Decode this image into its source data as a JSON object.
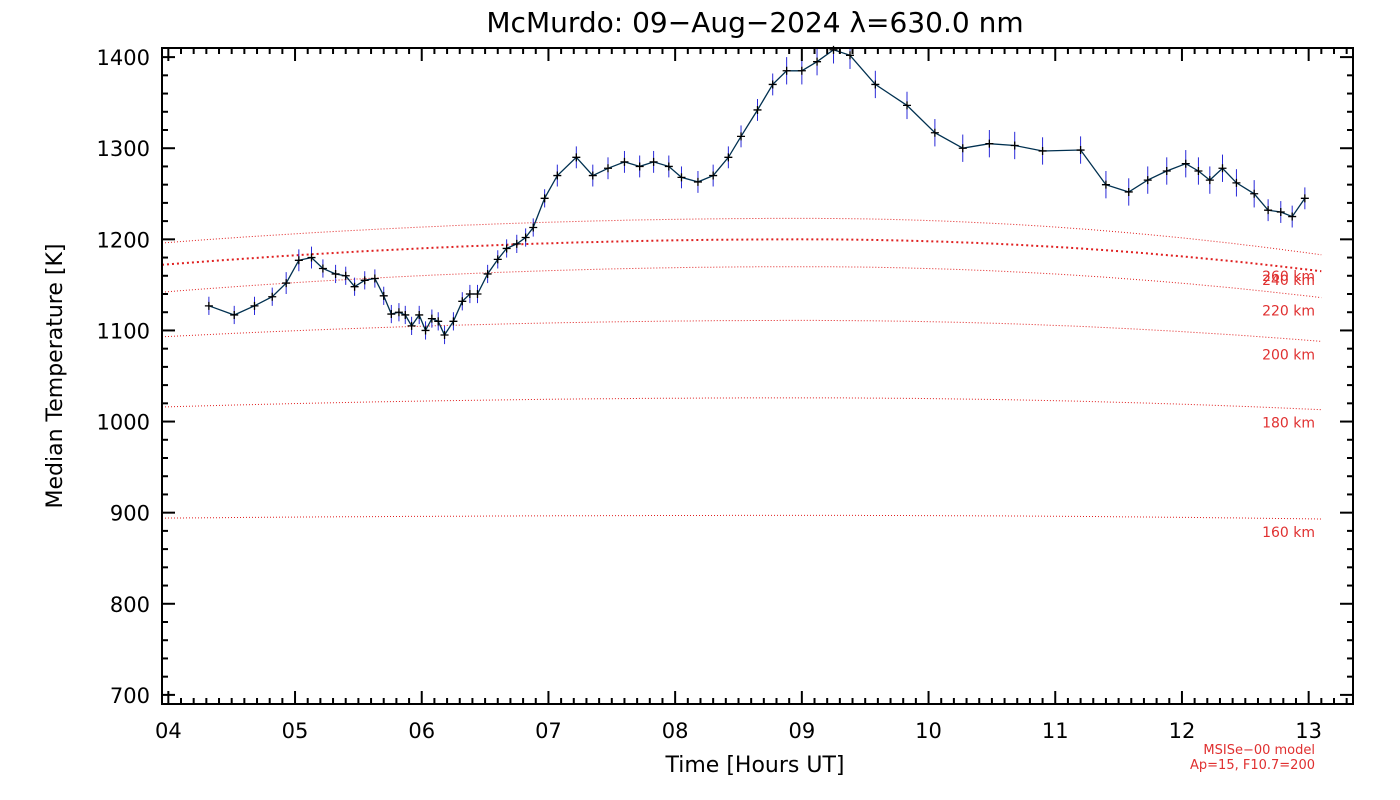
{
  "chart_data": {
    "type": "line",
    "title": "McMurdo: 09−Aug−2024 λ=630.0 nm",
    "xlabel": "Time [Hours UT]",
    "ylabel": "Median Temperature [K]",
    "xlim": [
      3.95,
      13.35
    ],
    "ylim": [
      690,
      1410
    ],
    "x_ticks": [
      {
        "value": 4,
        "label": "04"
      },
      {
        "value": 5,
        "label": "05"
      },
      {
        "value": 6,
        "label": "06"
      },
      {
        "value": 7,
        "label": "07"
      },
      {
        "value": 8,
        "label": "08"
      },
      {
        "value": 9,
        "label": "09"
      },
      {
        "value": 10,
        "label": "10"
      },
      {
        "value": 11,
        "label": "11"
      },
      {
        "value": 12,
        "label": "12"
      },
      {
        "value": 13,
        "label": "13"
      }
    ],
    "y_ticks": [
      {
        "value": 700,
        "label": "700"
      },
      {
        "value": 800,
        "label": "800"
      },
      {
        "value": 900,
        "label": "900"
      },
      {
        "value": 1000,
        "label": "1000"
      },
      {
        "value": 1100,
        "label": "1100"
      },
      {
        "value": 1200,
        "label": "1200"
      },
      {
        "value": 1300,
        "label": "1300"
      },
      {
        "value": 1400,
        "label": "1400"
      }
    ],
    "series": [
      {
        "color": "#003050",
        "errorbar_color": "#2828d8",
        "marker": "plus",
        "points": [
          {
            "x": 4.32,
            "y": 1127,
            "err": 10
          },
          {
            "x": 4.52,
            "y": 1117,
            "err": 10
          },
          {
            "x": 4.68,
            "y": 1127,
            "err": 10
          },
          {
            "x": 4.82,
            "y": 1137,
            "err": 10
          },
          {
            "x": 4.93,
            "y": 1152,
            "err": 12
          },
          {
            "x": 5.03,
            "y": 1177,
            "err": 12
          },
          {
            "x": 5.13,
            "y": 1180,
            "err": 12
          },
          {
            "x": 5.22,
            "y": 1168,
            "err": 10
          },
          {
            "x": 5.32,
            "y": 1162,
            "err": 10
          },
          {
            "x": 5.4,
            "y": 1160,
            "err": 10
          },
          {
            "x": 5.47,
            "y": 1148,
            "err": 10
          },
          {
            "x": 5.55,
            "y": 1155,
            "err": 10
          },
          {
            "x": 5.63,
            "y": 1157,
            "err": 10
          },
          {
            "x": 5.7,
            "y": 1138,
            "err": 10
          },
          {
            "x": 5.76,
            "y": 1118,
            "err": 10
          },
          {
            "x": 5.82,
            "y": 1120,
            "err": 10
          },
          {
            "x": 5.87,
            "y": 1117,
            "err": 10
          },
          {
            "x": 5.92,
            "y": 1105,
            "err": 10
          },
          {
            "x": 5.98,
            "y": 1117,
            "err": 10
          },
          {
            "x": 6.03,
            "y": 1100,
            "err": 10
          },
          {
            "x": 6.08,
            "y": 1113,
            "err": 10
          },
          {
            "x": 6.13,
            "y": 1110,
            "err": 10
          },
          {
            "x": 6.18,
            "y": 1095,
            "err": 10
          },
          {
            "x": 6.25,
            "y": 1110,
            "err": 10
          },
          {
            "x": 6.32,
            "y": 1132,
            "err": 10
          },
          {
            "x": 6.38,
            "y": 1140,
            "err": 10
          },
          {
            "x": 6.44,
            "y": 1140,
            "err": 10
          },
          {
            "x": 6.52,
            "y": 1162,
            "err": 10
          },
          {
            "x": 6.6,
            "y": 1178,
            "err": 10
          },
          {
            "x": 6.67,
            "y": 1190,
            "err": 10
          },
          {
            "x": 6.75,
            "y": 1195,
            "err": 10
          },
          {
            "x": 6.82,
            "y": 1202,
            "err": 10
          },
          {
            "x": 6.88,
            "y": 1213,
            "err": 10
          },
          {
            "x": 6.97,
            "y": 1245,
            "err": 10
          },
          {
            "x": 7.07,
            "y": 1270,
            "err": 12
          },
          {
            "x": 7.22,
            "y": 1290,
            "err": 12
          },
          {
            "x": 7.35,
            "y": 1270,
            "err": 12
          },
          {
            "x": 7.47,
            "y": 1278,
            "err": 12
          },
          {
            "x": 7.6,
            "y": 1285,
            "err": 12
          },
          {
            "x": 7.72,
            "y": 1280,
            "err": 12
          },
          {
            "x": 7.83,
            "y": 1285,
            "err": 12
          },
          {
            "x": 7.95,
            "y": 1280,
            "err": 12
          },
          {
            "x": 8.05,
            "y": 1268,
            "err": 12
          },
          {
            "x": 8.18,
            "y": 1263,
            "err": 12
          },
          {
            "x": 8.3,
            "y": 1270,
            "err": 12
          },
          {
            "x": 8.42,
            "y": 1290,
            "err": 12
          },
          {
            "x": 8.52,
            "y": 1313,
            "err": 12
          },
          {
            "x": 8.65,
            "y": 1342,
            "err": 12
          },
          {
            "x": 8.77,
            "y": 1370,
            "err": 12
          },
          {
            "x": 8.88,
            "y": 1385,
            "err": 15
          },
          {
            "x": 9.0,
            "y": 1385,
            "err": 15
          },
          {
            "x": 9.12,
            "y": 1395,
            "err": 15
          },
          {
            "x": 9.25,
            "y": 1408,
            "err": 15
          },
          {
            "x": 9.38,
            "y": 1402,
            "err": 15
          },
          {
            "x": 9.58,
            "y": 1370,
            "err": 15
          },
          {
            "x": 9.83,
            "y": 1347,
            "err": 15
          },
          {
            "x": 10.05,
            "y": 1317,
            "err": 15
          },
          {
            "x": 10.27,
            "y": 1300,
            "err": 15
          },
          {
            "x": 10.48,
            "y": 1305,
            "err": 15
          },
          {
            "x": 10.68,
            "y": 1303,
            "err": 15
          },
          {
            "x": 10.9,
            "y": 1297,
            "err": 15
          },
          {
            "x": 11.2,
            "y": 1298,
            "err": 15
          },
          {
            "x": 11.4,
            "y": 1260,
            "err": 15
          },
          {
            "x": 11.58,
            "y": 1252,
            "err": 15
          },
          {
            "x": 11.73,
            "y": 1265,
            "err": 15
          },
          {
            "x": 11.88,
            "y": 1275,
            "err": 15
          },
          {
            "x": 12.03,
            "y": 1283,
            "err": 15
          },
          {
            "x": 12.13,
            "y": 1275,
            "err": 15
          },
          {
            "x": 12.22,
            "y": 1265,
            "err": 15
          },
          {
            "x": 12.32,
            "y": 1278,
            "err": 15
          },
          {
            "x": 12.43,
            "y": 1262,
            "err": 15
          },
          {
            "x": 12.57,
            "y": 1250,
            "err": 15
          },
          {
            "x": 12.68,
            "y": 1232,
            "err": 12
          },
          {
            "x": 12.78,
            "y": 1230,
            "err": 12
          },
          {
            "x": 12.87,
            "y": 1225,
            "err": 12
          },
          {
            "x": 12.97,
            "y": 1245,
            "err": 12
          }
        ]
      }
    ],
    "model_curves": [
      {
        "label": "260 km",
        "peak": 1223,
        "start": 1196,
        "end": 1183,
        "bold": false
      },
      {
        "label": "240 km",
        "peak": 1200,
        "start": 1172,
        "end": 1165,
        "bold": true
      },
      {
        "label": "220 km",
        "peak": 1170,
        "start": 1142,
        "end": 1136,
        "bold": false
      },
      {
        "label": "200 km",
        "peak": 1111,
        "start": 1093,
        "end": 1088,
        "bold": false
      },
      {
        "label": "180 km",
        "peak": 1026,
        "start": 1016,
        "end": 1013,
        "bold": false
      },
      {
        "label": "160 km",
        "peak": 897,
        "start": 894,
        "end": 893,
        "bold": false
      }
    ],
    "model_curve_xlim": [
      3.95,
      13.1
    ],
    "model_color": "#e02020",
    "annotations": [
      "MSISe−00 model",
      "Ap=15, F10.7=200"
    ]
  }
}
